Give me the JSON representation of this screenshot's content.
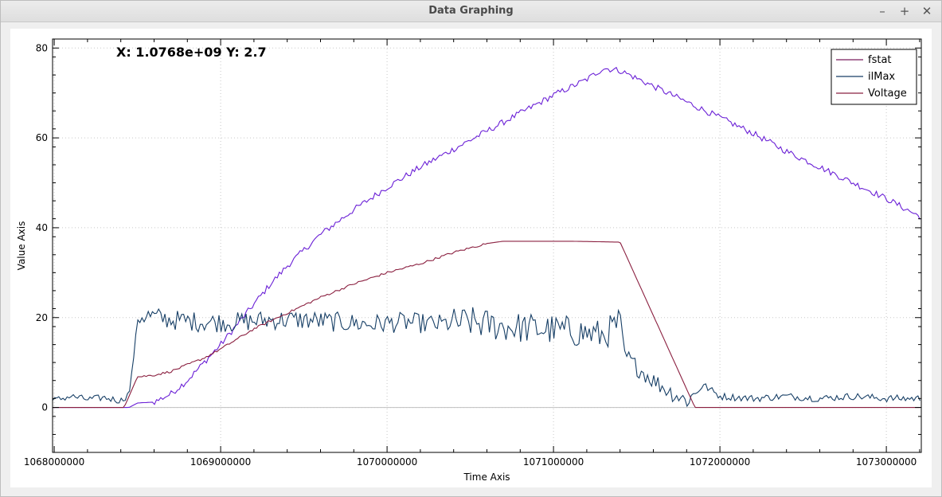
{
  "window": {
    "title": "Data Graphing",
    "buttons": {
      "minimize": "–",
      "maximize": "+",
      "close": "✕"
    }
  },
  "readout": "X: 1.0768e+09 Y: 2.7",
  "chart_data": {
    "type": "line",
    "xlabel": "Time Axis",
    "ylabel": "Value Axis",
    "xlim": [
      1067990000,
      1073210000
    ],
    "ylim": [
      -10,
      82
    ],
    "xticks": [
      "1068000000",
      "1069000000",
      "1070000000",
      "1071000000",
      "1072000000",
      "1073000000"
    ],
    "yticks": [
      "0",
      "20",
      "40",
      "60",
      "80"
    ],
    "grid": true,
    "legend_position": "top-right",
    "series": [
      {
        "name": "fstat",
        "color": "#6a1fd6",
        "legend_color": "#7b1f5e",
        "x": [
          1067990000,
          1068450000,
          1068500000,
          1068600000,
          1068700000,
          1068800000,
          1068900000,
          1069000000,
          1069100000,
          1069200000,
          1069300000,
          1069400000,
          1069500000,
          1069600000,
          1069800000,
          1070000000,
          1070200000,
          1070400000,
          1070600000,
          1070800000,
          1071000000,
          1071200000,
          1071300000,
          1071400000,
          1071600000,
          1071800000,
          1072000000,
          1072200000,
          1072400000,
          1072600000,
          1072800000,
          1073000000,
          1073200000
        ],
        "y": [
          0,
          0,
          1,
          1.2,
          3,
          6,
          10,
          14,
          18.5,
          23,
          27.5,
          31.5,
          35,
          38.5,
          44,
          49,
          53.5,
          57.5,
          61.5,
          65.5,
          69.5,
          73,
          75.5,
          75,
          71.5,
          68,
          64.5,
          61,
          57,
          53.5,
          50,
          46.5,
          42.5
        ]
      },
      {
        "name": "ilMax",
        "color": "#173f66",
        "legend_color": "#173f66",
        "x": [
          1067990000,
          1068100000,
          1068200000,
          1068300000,
          1068400000,
          1068450000,
          1068480000,
          1068500000,
          1068550000,
          1068700000,
          1068900000,
          1069100000,
          1069300000,
          1069500000,
          1069700000,
          1069900000,
          1070100000,
          1070300000,
          1070500000,
          1070700000,
          1070900000,
          1071100000,
          1071300000,
          1071400000,
          1071420000,
          1071500000,
          1071600000,
          1071700000,
          1071800000,
          1071850000,
          1071900000,
          1072000000,
          1072200000,
          1072400000,
          1072600000,
          1072800000,
          1073000000,
          1073200000
        ],
        "y": [
          1.5,
          2.5,
          1.8,
          2.2,
          1.5,
          3,
          12,
          20,
          20.5,
          19.5,
          19,
          19,
          19.5,
          19.5,
          19,
          18.5,
          19,
          18.5,
          19,
          18,
          17.5,
          17,
          16,
          19,
          12,
          9,
          6,
          3.5,
          1.5,
          3,
          5,
          2.5,
          2,
          2.5,
          2,
          2.5,
          2,
          2
        ]
      },
      {
        "name": "Voltage",
        "color": "#8b2040",
        "legend_color": "#8b2040",
        "x": [
          1067990000,
          1068420000,
          1068500000,
          1068600000,
          1068700000,
          1068800000,
          1068900000,
          1069000000,
          1069200000,
          1069400000,
          1069600000,
          1069800000,
          1070000000,
          1070200000,
          1070400000,
          1070600000,
          1070700000,
          1070900000,
          1071100000,
          1071400000,
          1071850000,
          1073200000
        ],
        "y": [
          0,
          0,
          6.8,
          7.2,
          8,
          9.5,
          11,
          13,
          17.5,
          21,
          24.5,
          27.5,
          30,
          32,
          34.5,
          36.5,
          37,
          37,
          37,
          36.8,
          0,
          0
        ]
      }
    ]
  }
}
